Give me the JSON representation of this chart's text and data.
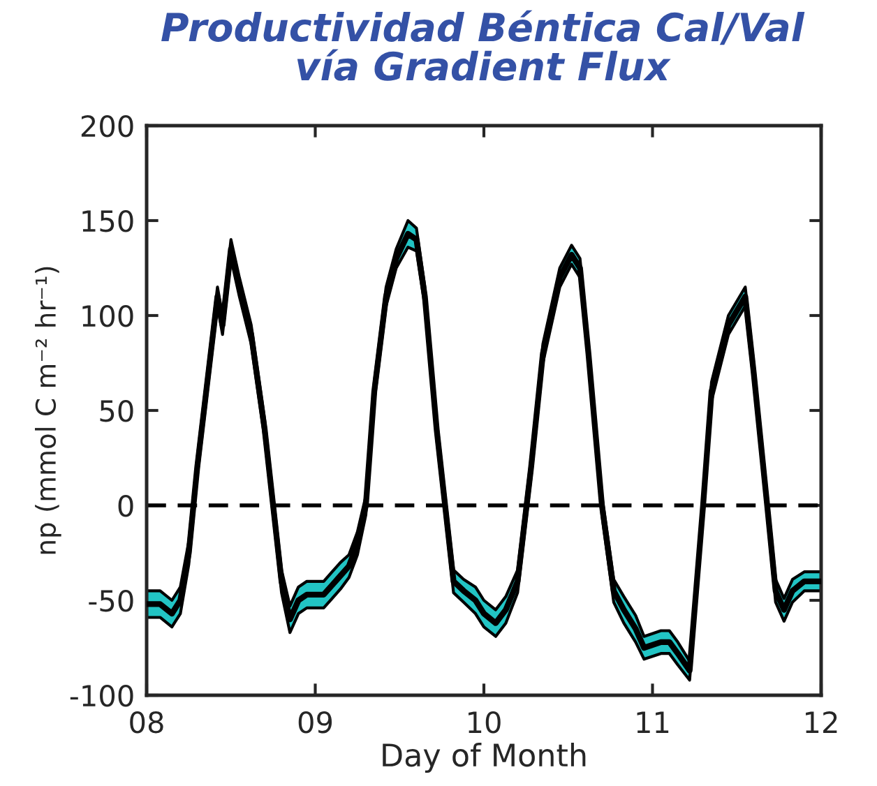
{
  "chart_data": {
    "type": "line",
    "title": "Productividad Béntica Cal/Val\nvía Gradient Flux",
    "xlabel": "Day of Month",
    "ylabel": "np (mmol C m⁻² hr⁻¹)",
    "x": [
      8.0,
      8.08,
      8.15,
      8.2,
      8.25,
      8.3,
      8.38,
      8.42,
      8.45,
      8.5,
      8.55,
      8.62,
      8.7,
      8.75,
      8.8,
      8.85,
      8.9,
      8.95,
      9.05,
      9.1,
      9.15,
      9.2,
      9.25,
      9.3,
      9.35,
      9.42,
      9.48,
      9.55,
      9.6,
      9.65,
      9.72,
      9.77,
      9.82,
      9.88,
      9.95,
      10.0,
      10.07,
      10.13,
      10.2,
      10.28,
      10.35,
      10.45,
      10.52,
      10.57,
      10.62,
      10.7,
      10.77,
      10.83,
      10.9,
      10.95,
      11.05,
      11.1,
      11.15,
      11.22,
      11.3,
      11.35,
      11.45,
      11.55,
      11.6,
      11.68,
      11.73,
      11.78,
      11.83,
      11.9,
      12.0
    ],
    "series": [
      {
        "color": "#000000",
        "values": [
          -52,
          -52,
          -57,
          -50,
          -25,
          20,
          80,
          110,
          95,
          135,
          115,
          90,
          40,
          0,
          -40,
          -60,
          -50,
          -47,
          -47,
          -42,
          -37,
          -32,
          -20,
          0,
          60,
          110,
          130,
          143,
          140,
          110,
          40,
          0,
          -40,
          -45,
          -50,
          -57,
          -62,
          -55,
          -40,
          20,
          80,
          120,
          132,
          125,
          80,
          0,
          -45,
          -55,
          -65,
          -75,
          -72,
          -72,
          -78,
          -87,
          0,
          60,
          95,
          110,
          70,
          0,
          -45,
          -55,
          -45,
          -40,
          -40
        ],
        "lower": [
          -59,
          -59,
          -64,
          -57,
          -31,
          15,
          75,
          105,
          90,
          130,
          110,
          85,
          35,
          -5,
          -46,
          -67,
          -57,
          -54,
          -54,
          -49,
          -44,
          -38,
          -26,
          -5,
          55,
          105,
          125,
          136,
          134,
          105,
          35,
          -5,
          -46,
          -51,
          -57,
          -64,
          -69,
          -62,
          -46,
          15,
          75,
          115,
          127,
          120,
          75,
          -5,
          -51,
          -62,
          -72,
          -81,
          -78,
          -78,
          -84,
          -92,
          -5,
          55,
          90,
          105,
          65,
          -5,
          -51,
          -61,
          -51,
          -45,
          -45
        ],
        "upper": [
          -45,
          -45,
          -50,
          -43,
          -19,
          25,
          85,
          115,
          100,
          140,
          120,
          95,
          45,
          5,
          -34,
          -53,
          -43,
          -40,
          -40,
          -35,
          -30,
          -26,
          -14,
          5,
          65,
          115,
          135,
          150,
          146,
          115,
          45,
          5,
          -34,
          -39,
          -43,
          -50,
          -55,
          -48,
          -34,
          25,
          85,
          125,
          137,
          130,
          85,
          5,
          -39,
          -48,
          -58,
          -69,
          -66,
          -66,
          -72,
          -82,
          5,
          65,
          100,
          115,
          75,
          5,
          -39,
          -49,
          -39,
          -35,
          -35
        ]
      }
    ],
    "xlim": [
      8,
      12
    ],
    "xticks": [
      {
        "value": 8,
        "label": "08"
      },
      {
        "value": 9,
        "label": "09"
      },
      {
        "value": 10,
        "label": "10"
      },
      {
        "value": 11,
        "label": "11"
      },
      {
        "value": 12,
        "label": "12"
      }
    ],
    "ylim": [
      -100,
      200
    ],
    "yticks": [
      -100,
      -50,
      0,
      50,
      100,
      150,
      200
    ],
    "ref_lines": [
      {
        "axis": "y",
        "value": 0,
        "line_style": "dashed",
        "color": "#000000"
      }
    ],
    "grid": false,
    "legend": false,
    "line_style": "solid",
    "marker": "none"
  }
}
